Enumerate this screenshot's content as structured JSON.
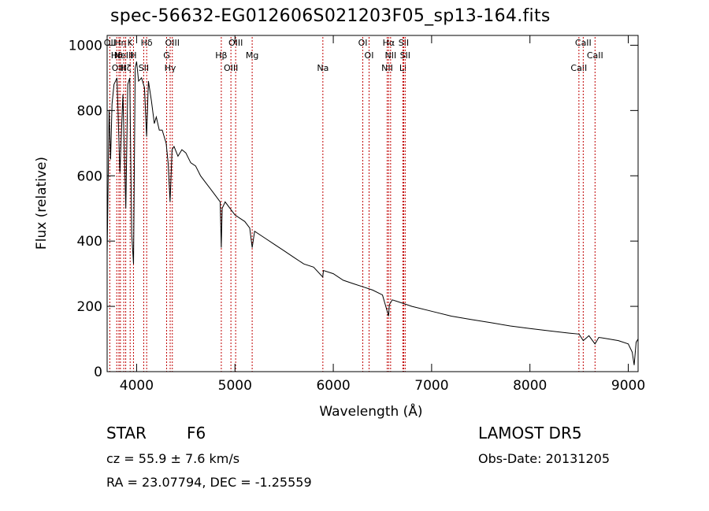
{
  "chart_data": {
    "type": "line",
    "title": "spec-56632-EG012606S021203F05_sp13-164.fits",
    "xlabel": "Wavelength (Å)",
    "ylabel": "Flux (relative)",
    "xlim": [
      3700,
      9100
    ],
    "ylim": [
      0,
      1030
    ],
    "xticks": [
      4000,
      5000,
      6000,
      7000,
      8000,
      9000
    ],
    "xtick_labels": [
      "4000",
      "5000",
      "6000",
      "7000",
      "8000",
      "9000"
    ],
    "yticks": [
      0,
      200,
      400,
      600,
      800,
      1000
    ],
    "ytick_labels": [
      "0",
      "200",
      "400",
      "600",
      "800",
      "1000"
    ],
    "series": [
      {
        "x": [
          3700,
          3720,
          3735,
          3750,
          3770,
          3800,
          3830,
          3860,
          3890,
          3910,
          3930,
          3950,
          3968,
          3985,
          4000,
          4020,
          4050,
          4080,
          4101,
          4120,
          4150,
          4180,
          4200,
          4230,
          4260,
          4300,
          4320,
          4340,
          4360,
          4380,
          4420,
          4460,
          4500,
          4550,
          4600,
          4650,
          4700,
          4750,
          4800,
          4850,
          4861,
          4870,
          4900,
          4950,
          5000,
          5050,
          5100,
          5150,
          5175,
          5200,
          5300,
          5400,
          5500,
          5600,
          5700,
          5800,
          5893,
          5900,
          6000,
          6100,
          6200,
          6300,
          6400,
          6500,
          6563,
          6570,
          6600,
          6700,
          6800,
          7000,
          7200,
          7400,
          7600,
          7800,
          8000,
          8200,
          8400,
          8500,
          8542,
          8600,
          8662,
          8700,
          8800,
          8900,
          9000,
          9040,
          9060,
          9080,
          9100
        ],
        "y": [
          360,
          800,
          650,
          820,
          880,
          900,
          610,
          850,
          500,
          880,
          900,
          420,
          330,
          930,
          950,
          890,
          900,
          870,
          720,
          890,
          830,
          760,
          780,
          740,
          740,
          700,
          640,
          520,
          680,
          690,
          660,
          680,
          670,
          640,
          630,
          600,
          580,
          560,
          540,
          520,
          380,
          500,
          520,
          500,
          480,
          470,
          460,
          440,
          380,
          430,
          410,
          390,
          370,
          350,
          330,
          320,
          290,
          310,
          300,
          280,
          270,
          260,
          250,
          235,
          170,
          205,
          220,
          210,
          200,
          185,
          170,
          160,
          150,
          140,
          132,
          125,
          118,
          115,
          95,
          110,
          85,
          105,
          100,
          95,
          85,
          60,
          20,
          90,
          100
        ]
      }
    ],
    "lines": [
      {
        "x": 3727,
        "label": "OII"
      },
      {
        "x": 3798,
        "label": "Hθ"
      },
      {
        "x": 3820,
        "label": "OIII"
      },
      {
        "x": 3835,
        "label": "Hη"
      },
      {
        "x": 3869,
        "label": "NeIII"
      },
      {
        "x": 3889,
        "label": "Hζ"
      },
      {
        "x": 3934,
        "label": "K"
      },
      {
        "x": 3968,
        "label": "H"
      },
      {
        "x": 4072,
        "label": "SII"
      },
      {
        "x": 4102,
        "label": "Hδ"
      },
      {
        "x": 4305,
        "label": "G"
      },
      {
        "x": 4341,
        "label": "Hγ"
      },
      {
        "x": 4363,
        "label": "OIII"
      },
      {
        "x": 4861,
        "label": "Hβ"
      },
      {
        "x": 4959,
        "label": "OIII"
      },
      {
        "x": 5007,
        "label": "OIII"
      },
      {
        "x": 5175,
        "label": "Mg"
      },
      {
        "x": 5894,
        "label": "Na"
      },
      {
        "x": 6300,
        "label": "OI"
      },
      {
        "x": 6364,
        "label": "OI"
      },
      {
        "x": 6548,
        "label": "NII"
      },
      {
        "x": 6563,
        "label": "Hα"
      },
      {
        "x": 6583,
        "label": "NII"
      },
      {
        "x": 6708,
        "label": "Li"
      },
      {
        "x": 6716,
        "label": "SII"
      },
      {
        "x": 6731,
        "label": "SII"
      },
      {
        "x": 8498,
        "label": "CaII"
      },
      {
        "x": 8542,
        "label": "CaII"
      },
      {
        "x": 8662,
        "label": "CaII"
      }
    ],
    "colors": {
      "spectrum": "#000000",
      "lines": "#c00000"
    }
  },
  "info": {
    "object_class": "STAR",
    "subclass": "F6",
    "survey": "LAMOST DR5",
    "cz": "cz = 55.9 ± 7.6 km/s",
    "obs_date": "Obs-Date: 20131205",
    "radec": "RA =  23.07794, DEC =  -1.25559"
  }
}
